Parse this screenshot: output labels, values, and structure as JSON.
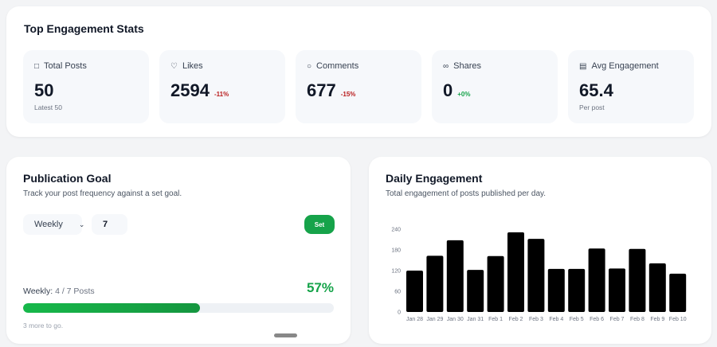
{
  "top": {
    "title": "Top Engagement Stats",
    "stats": [
      {
        "label": "Total Posts",
        "icon": "file-icon",
        "value": "50",
        "change": "",
        "sub": "Latest 50"
      },
      {
        "label": "Likes",
        "icon": "heart-icon",
        "value": "2594",
        "change": "-11%",
        "sub": ""
      },
      {
        "label": "Comments",
        "icon": "comment-icon",
        "value": "677",
        "change": "-15%",
        "sub": ""
      },
      {
        "label": "Shares",
        "icon": "share-icon",
        "value": "0",
        "change": "+0%",
        "sub": ""
      },
      {
        "label": "Avg Engagement",
        "icon": "chart-icon",
        "value": "65.4",
        "change": "",
        "sub": "Per post"
      }
    ]
  },
  "colors": {
    "negative": "#b91c1c",
    "positive": "#16a34a",
    "accent": "#16a34a"
  },
  "goal": {
    "title": "Publication Goal",
    "desc": "Track your post frequency against a set goal.",
    "period": "Weekly",
    "target": "7",
    "set_label": "Set",
    "progress_prefix": "Weekly:",
    "progress_text": "4 / 7 Posts",
    "percent_label": "57%",
    "percent": 57,
    "remaining": "3 more to go."
  },
  "daily": {
    "title": "Daily Engagement",
    "desc": "Total engagement of posts published per day."
  },
  "chart_data": {
    "type": "bar",
    "categories": [
      "Jan 28",
      "Jan 29",
      "Jan 30",
      "Jan 31",
      "Feb 1",
      "Feb 2",
      "Feb 3",
      "Feb 4",
      "Feb 5",
      "Feb 6",
      "Feb 7",
      "Feb 8",
      "Feb 9",
      "Feb 10"
    ],
    "values": [
      120,
      163,
      208,
      122,
      162,
      231,
      212,
      125,
      125,
      184,
      126,
      183,
      141,
      111
    ],
    "ylim": [
      0,
      240
    ],
    "yticks": [
      0,
      60,
      120,
      180,
      240
    ],
    "grid": false,
    "color": "#000000"
  }
}
